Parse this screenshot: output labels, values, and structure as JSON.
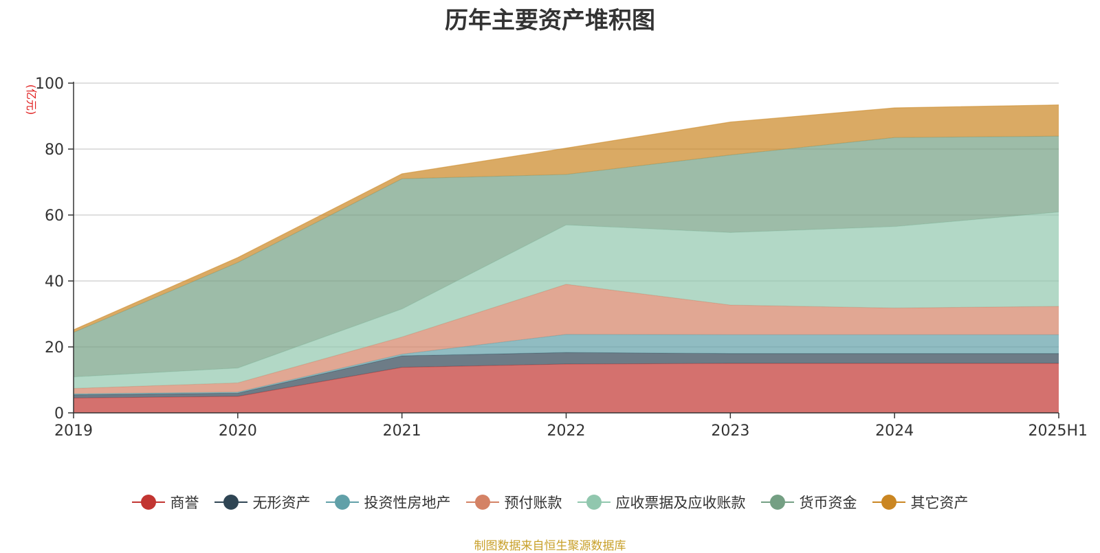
{
  "chart_data": {
    "type": "area",
    "stacked": true,
    "title": "历年主要资产堆积图",
    "ylabel": "(亿元)",
    "xlabel": "",
    "categories": [
      "2019",
      "2020",
      "2021",
      "2022",
      "2023",
      "2024",
      "2025H1"
    ],
    "ylim": [
      0,
      100
    ],
    "yticks": [
      0,
      20,
      40,
      60,
      80,
      100
    ],
    "grid": true,
    "legend_position": "bottom",
    "series": [
      {
        "name": "商誉",
        "color": "#c23531",
        "values": [
          4.5,
          5.0,
          13.8,
          14.8,
          15.0,
          15.0,
          15.0
        ]
      },
      {
        "name": "无形资产",
        "color": "#2f4554",
        "values": [
          1.0,
          1.0,
          3.5,
          3.5,
          3.0,
          3.0,
          3.0
        ]
      },
      {
        "name": "投资性房地产",
        "color": "#61a0a8",
        "values": [
          0.3,
          0.3,
          0.5,
          5.5,
          5.7,
          5.7,
          5.7
        ]
      },
      {
        "name": "预付账款",
        "color": "#d48265",
        "values": [
          1.6,
          2.8,
          5.2,
          15.2,
          9.0,
          8.1,
          8.6
        ]
      },
      {
        "name": "应收票据及应收账款",
        "color": "#91c7ae",
        "values": [
          3.5,
          4.5,
          8.5,
          18.0,
          22.0,
          24.7,
          28.6
        ]
      },
      {
        "name": "货币资金",
        "color": "#749f83",
        "values": [
          13.5,
          32.0,
          39.5,
          15.3,
          23.5,
          27.0,
          23.0
        ]
      },
      {
        "name": "其它资产",
        "color": "#ca8622",
        "values": [
          0.8,
          1.5,
          1.5,
          8.0,
          10.0,
          9.0,
          9.5
        ]
      }
    ],
    "source_note": "制图数据来自恒生聚源数据库"
  }
}
